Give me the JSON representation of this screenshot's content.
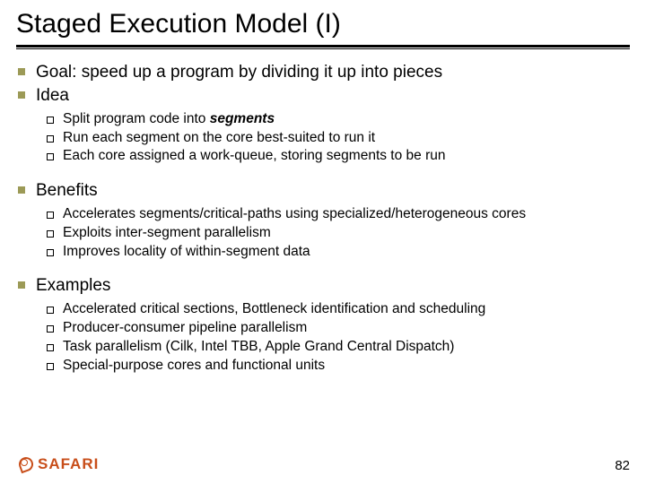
{
  "title": "Staged Execution Model (I)",
  "bullets": {
    "l0": "Goal: speed up a program by dividing it up into pieces",
    "l1": "Idea",
    "l1_sub": {
      "s0_pre": "Split program code into ",
      "s0_em": "segments",
      "s1": "Run each segment on the core best-suited to run it",
      "s2": "Each core assigned a work-queue, storing segments to be run"
    },
    "l2": "Benefits",
    "l2_sub": {
      "s0": "Accelerates segments/critical-paths using specialized/heterogeneous cores",
      "s1": "Exploits inter-segment parallelism",
      "s2": "Improves locality of within-segment data"
    },
    "l3": "Examples",
    "l3_sub": {
      "s0": "Accelerated critical sections, Bottleneck identification and scheduling",
      "s1": "Producer-consumer pipeline parallelism",
      "s2": "Task parallelism (Cilk, Intel TBB, Apple Grand Central Dispatch)",
      "s3": "Special-purpose cores and functional units"
    }
  },
  "footer": {
    "logo_text": "SAFARI",
    "page_number": "82"
  },
  "colors": {
    "title": "#000000",
    "bullet_square": "#9c9a57",
    "logo": "#c84e1a",
    "background": "#ffffff"
  }
}
